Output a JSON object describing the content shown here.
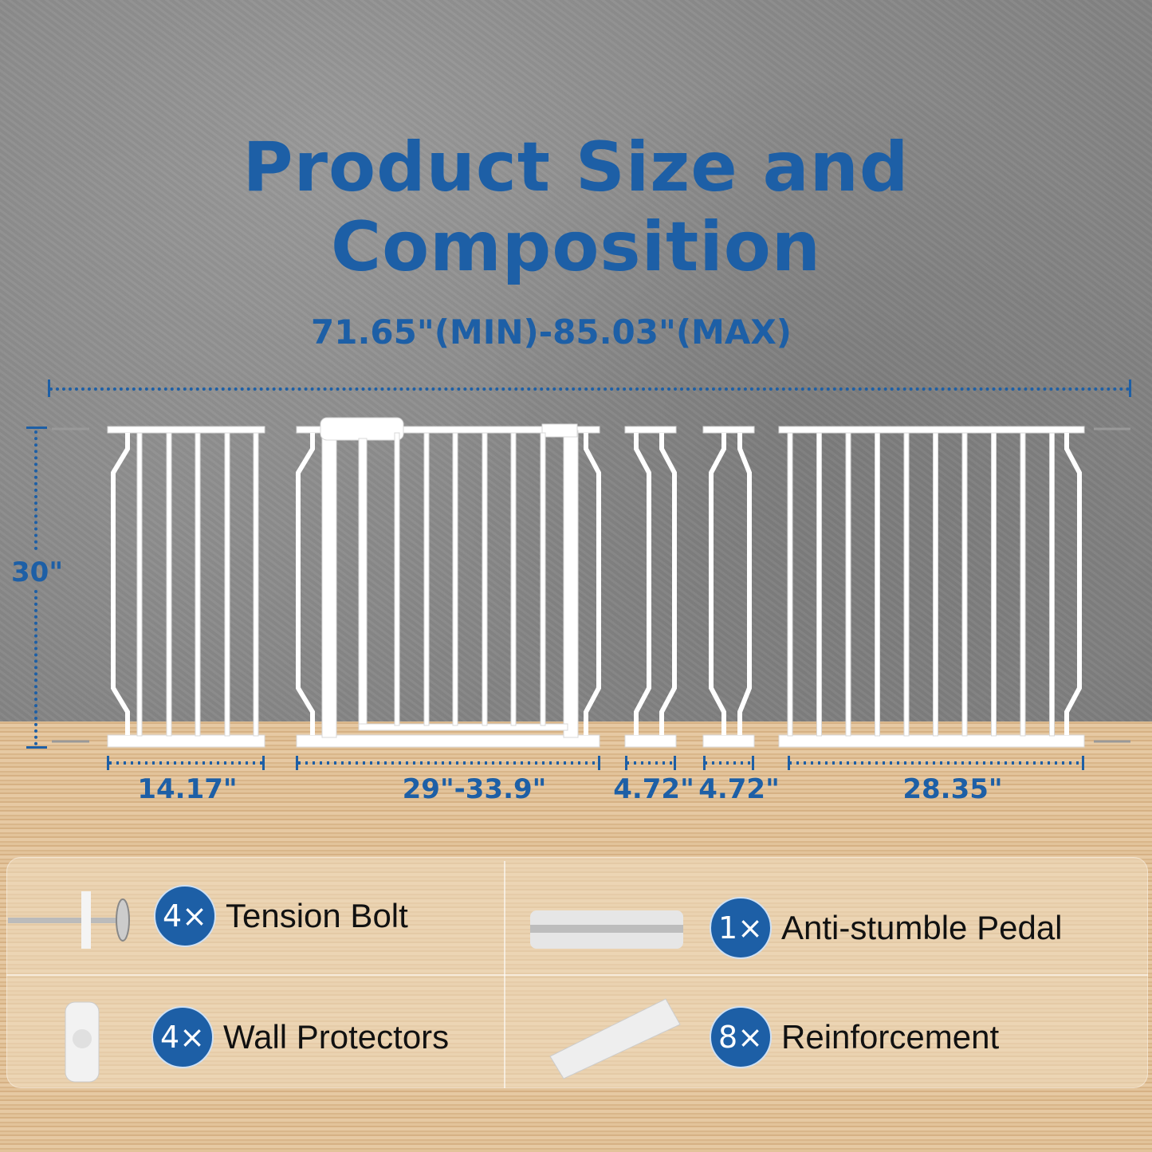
{
  "title": "Product Size and Composition",
  "overall_width": "71.65\"(MIN)-85.03\"(MAX)",
  "height": "30\"",
  "panel_widths": [
    "14.17\"",
    "29\"-33.9\"",
    "4.72\"",
    "4.72\"",
    "28.35\""
  ],
  "components": [
    {
      "qty": "4",
      "mult": "×",
      "name": "Tension Bolt",
      "icon": "tension-bolt-icon"
    },
    {
      "qty": "1",
      "mult": "×",
      "name": "Anti-stumble Pedal",
      "icon": "pedal-icon"
    },
    {
      "qty": "4",
      "mult": "×",
      "name": "Wall Protectors",
      "icon": "wall-protector-icon"
    },
    {
      "qty": "8",
      "mult": "×",
      "name": "Reinforcement",
      "icon": "reinforcement-icon"
    }
  ],
  "colors": {
    "accent": "#1d5fa6",
    "gate": "#ffffff"
  }
}
